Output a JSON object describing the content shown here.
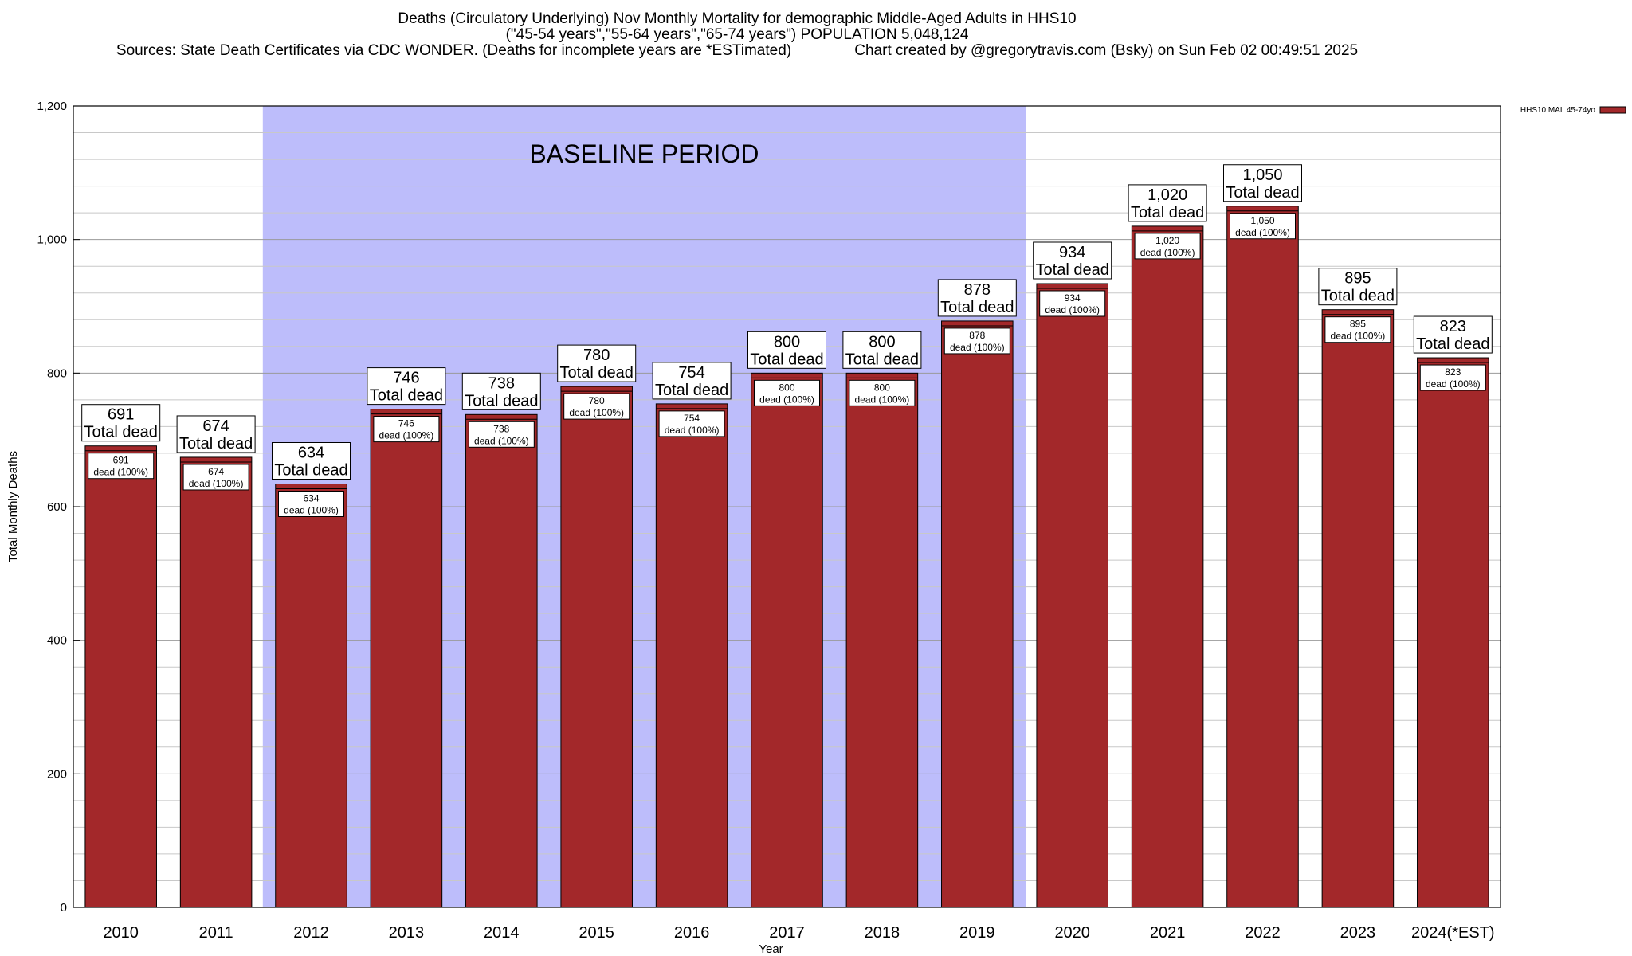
{
  "header": {
    "title_line1": "Deaths (Circulatory Underlying) Nov Monthly Mortality for demographic Middle-Aged Adults in HHS10",
    "title_line2": "(\"45-54 years\",\"55-64 years\",\"65-74 years\") POPULATION 5,048,124",
    "title_line3": "Sources: State Death Certificates via CDC WONDER. (Deaths for incomplete years are *ESTimated)               Chart created by @gregorytravis.com (Bsky) on Sun Feb 02 00:49:51 2025"
  },
  "chart_data": {
    "type": "bar",
    "xlabel": "Year",
    "ylabel": "Total Monthly Deaths",
    "ylim": [
      0,
      1200
    ],
    "y_ticks": [
      0,
      200,
      400,
      600,
      800,
      1000,
      1200
    ],
    "y_tick_labels": [
      "0",
      "200",
      "400",
      "600",
      "800",
      "1,000",
      "1,200"
    ],
    "grid": true,
    "legend": {
      "placement": "top-right",
      "entries": [
        "HHS10 MAL 45-74yo"
      ]
    },
    "categories": [
      "2010",
      "2011",
      "2012",
      "2013",
      "2014",
      "2015",
      "2016",
      "2017",
      "2018",
      "2019",
      "2020",
      "2021",
      "2022",
      "2023",
      "2024(*EST)"
    ],
    "series": [
      {
        "name": "HHS10 MAL 45-74yo",
        "values": [
          691,
          674,
          634,
          746,
          738,
          780,
          754,
          800,
          800,
          878,
          934,
          1020,
          1050,
          895,
          823
        ],
        "color": "#a3282a"
      }
    ],
    "value_labels": [
      "691",
      "674",
      "634",
      "746",
      "738",
      "780",
      "754",
      "800",
      "800",
      "878",
      "934",
      "1,020",
      "1,050",
      "895",
      "823"
    ],
    "top_label_suffix": "Total dead",
    "inner_label_suffix": "dead (100%)",
    "baseline_period": {
      "label": "BASELINE PERIOD",
      "start": "2012",
      "end": "2019",
      "color": "#bdbdfb"
    }
  }
}
